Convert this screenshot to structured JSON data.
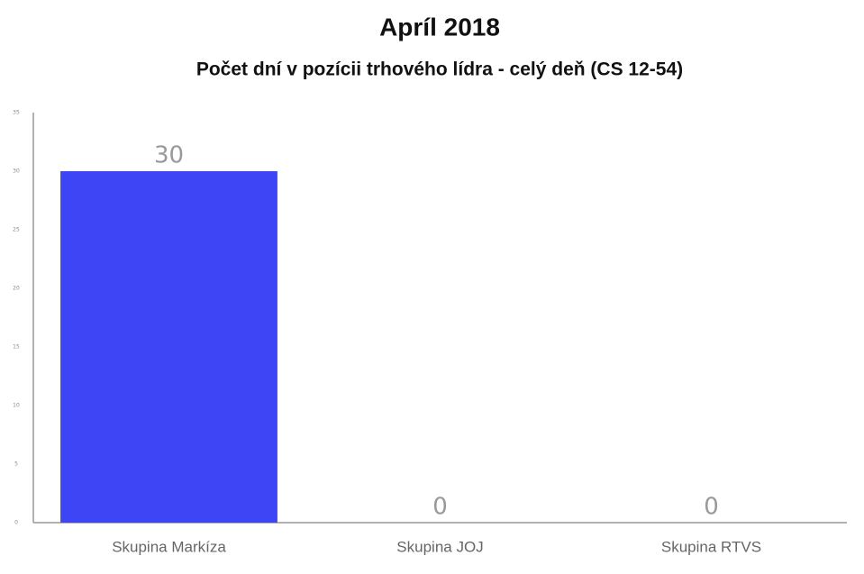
{
  "chart_data": {
    "type": "bar",
    "title": "Apríl 2018",
    "subtitle": "Počet dní v pozícii trhového lídra - celý deň (CS 12-54)",
    "categories": [
      "Skupina Markíza",
      "Skupina JOJ",
      "Skupina RTVS"
    ],
    "values": [
      30,
      0,
      0
    ],
    "color": "#3d45f5",
    "ylim": [
      0,
      35
    ],
    "yticks": [
      0,
      5,
      10,
      15,
      20,
      25,
      30,
      35
    ],
    "grid": false
  }
}
